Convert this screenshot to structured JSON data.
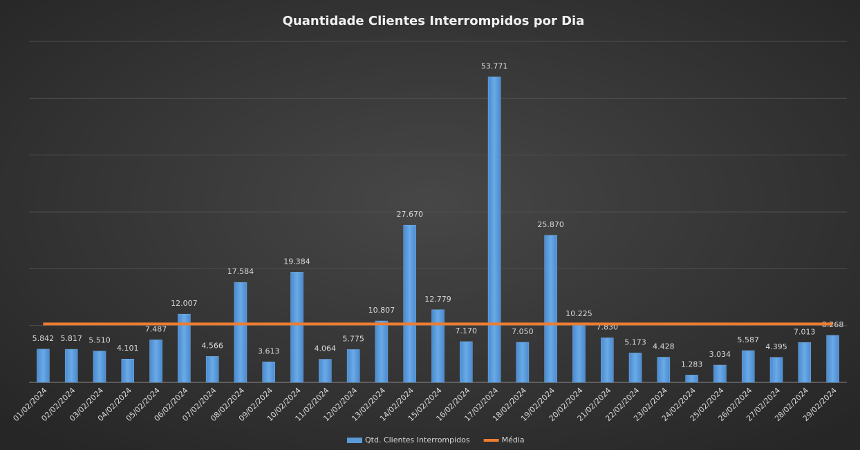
{
  "chart_data": {
    "type": "bar",
    "title": "Quantidade Clientes Interrompidos por Dia",
    "categories": [
      "01/02/2024",
      "02/02/2024",
      "03/02/2024",
      "04/02/2024",
      "05/02/2024",
      "06/02/2024",
      "07/02/2024",
      "08/02/2024",
      "09/02/2024",
      "10/02/2024",
      "11/02/2024",
      "12/02/2024",
      "13/02/2024",
      "14/02/2024",
      "15/02/2024",
      "16/02/2024",
      "17/02/2024",
      "18/02/2024",
      "19/02/2024",
      "20/02/2024",
      "21/02/2024",
      "22/02/2024",
      "23/02/2024",
      "24/02/2024",
      "25/02/2024",
      "26/02/2024",
      "27/02/2024",
      "28/02/2024",
      "29/02/2024"
    ],
    "series": [
      {
        "name": "Qtd. Clientes Interrompidos",
        "color": "#5b9bd5",
        "type": "bar",
        "values": [
          5842,
          5817,
          5510,
          4101,
          7487,
          12007,
          4566,
          17584,
          3613,
          19384,
          4064,
          5775,
          10807,
          27670,
          12779,
          7170,
          53771,
          7050,
          25870,
          10225,
          7830,
          5173,
          4428,
          1283,
          3034,
          5587,
          4395,
          7013,
          8268
        ],
        "value_labels": [
          "5.842",
          "5.817",
          "5.510",
          "4.101",
          "7.487",
          "12.007",
          "4.566",
          "17.584",
          "3.613",
          "19.384",
          "4.064",
          "5.775",
          "10.807",
          "27.670",
          "12.779",
          "7.170",
          "53.771",
          "7.050",
          "25.870",
          "10.225",
          "7.830",
          "5.173",
          "4.428",
          "1.283",
          "3.034",
          "5.587",
          "4.395",
          "7.013",
          "8.268"
        ]
      },
      {
        "name": "Média",
        "color": "#ed7d31",
        "type": "line",
        "values": [
          10279,
          10279,
          10279,
          10279,
          10279,
          10279,
          10279,
          10279,
          10279,
          10279,
          10279,
          10279,
          10279,
          10279,
          10279,
          10279,
          10279,
          10279,
          10279,
          10279,
          10279,
          10279,
          10279,
          10279,
          10279,
          10279,
          10279,
          10279,
          10279
        ]
      }
    ],
    "ylim": [
      0,
      60000
    ],
    "yticks": [
      0,
      10000,
      20000,
      30000,
      40000,
      50000,
      60000
    ],
    "grid": true,
    "legend": "bottom"
  }
}
